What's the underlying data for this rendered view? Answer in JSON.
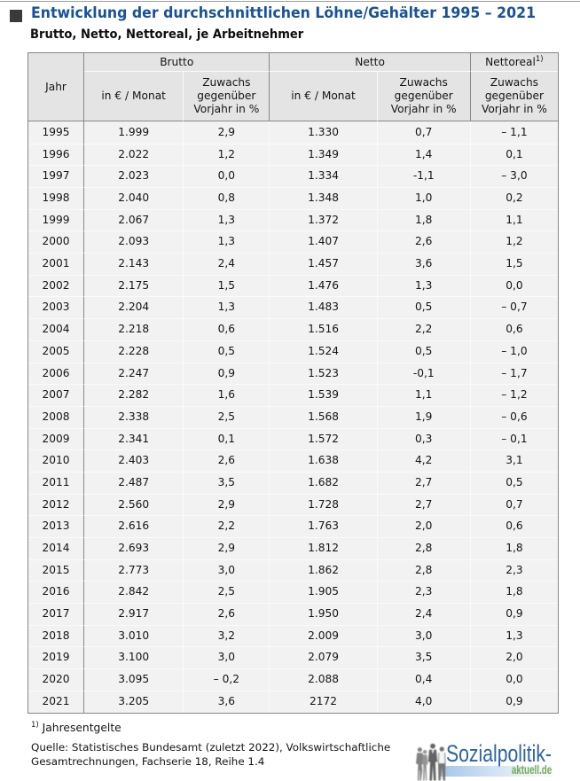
{
  "header": {
    "title": "Entwicklung der durchschnittlichen Löhne/Gehälter 1995 – 2021",
    "subtitle": "Brutto, Netto, Nettoreal, je Arbeitnehmer"
  },
  "table": {
    "jahr_label": "Jahr",
    "groups": [
      {
        "label": "Brutto",
        "sup": "",
        "cols": [
          "in € / Monat",
          "Zuwachs gegenüber Vorjahr in %"
        ]
      },
      {
        "label": "Netto",
        "sup": "",
        "cols": [
          "in € / Monat",
          "Zuwachs gegenüber Vorjahr in %"
        ]
      },
      {
        "label": "Nettoreal",
        "sup": "1)",
        "cols": [
          "Zuwachs gegenüber Vorjahr in %"
        ]
      }
    ],
    "rows": [
      [
        "1995",
        "1.999",
        "2,9",
        "1.330",
        "0,7",
        "– 1,1"
      ],
      [
        "1996",
        "2.022",
        "1,2",
        "1.349",
        "1,4",
        "0,1"
      ],
      [
        "1997",
        "2.023",
        "0,0",
        "1.334",
        "-1,1",
        "– 3,0"
      ],
      [
        "1998",
        "2.040",
        "0,8",
        "1.348",
        "1,0",
        "0,2"
      ],
      [
        "1999",
        "2.067",
        "1,3",
        "1.372",
        "1,8",
        "1,1"
      ],
      [
        "2000",
        "2.093",
        "1,3",
        "1.407",
        "2,6",
        "1,2"
      ],
      [
        "2001",
        "2.143",
        "2,4",
        "1.457",
        "3,6",
        "1,5"
      ],
      [
        "2002",
        "2.175",
        "1,5",
        "1.476",
        "1,3",
        "0,0"
      ],
      [
        "2003",
        "2.204",
        "1,3",
        "1.483",
        "0,5",
        "– 0,7"
      ],
      [
        "2004",
        "2.218",
        "0,6",
        "1.516",
        "2,2",
        "0,6"
      ],
      [
        "2005",
        "2.228",
        "0,5",
        "1.524",
        "0,5",
        "– 1,0"
      ],
      [
        "2006",
        "2.247",
        "0,9",
        "1.523",
        "-0,1",
        "– 1,7"
      ],
      [
        "2007",
        "2.282",
        "1,6",
        "1.539",
        "1,1",
        "– 1,2"
      ],
      [
        "2008",
        "2.338",
        "2,5",
        "1.568",
        "1,9",
        "– 0,6"
      ],
      [
        "2009",
        "2.341",
        "0,1",
        "1.572",
        "0,3",
        "– 0,1"
      ],
      [
        "2010",
        "2.403",
        "2,6",
        "1.638",
        "4,2",
        "3,1"
      ],
      [
        "2011",
        "2.487",
        "3,5",
        "1.682",
        "2,7",
        "0,5"
      ],
      [
        "2012",
        "2.560",
        "2,9",
        "1.728",
        "2,7",
        "0,7"
      ],
      [
        "2013",
        "2.616",
        "2,2",
        "1.763",
        "2,0",
        "0,6"
      ],
      [
        "2014",
        "2.693",
        "2,9",
        "1.812",
        "2,8",
        "1,8"
      ],
      [
        "2015",
        "2.773",
        "3,0",
        "1.862",
        "2,8",
        "2,3"
      ],
      [
        "2016",
        "2.842",
        "2,5",
        "1.905",
        "2,3",
        "1,8"
      ],
      [
        "2017",
        "2.917",
        "2,6",
        "1.950",
        "2,4",
        "0,9"
      ],
      [
        "2018",
        "3.010",
        "3,2",
        "2.009",
        "3,0",
        "1,3"
      ],
      [
        "2019",
        "3.100",
        "3,0",
        "2.079",
        "3,5",
        "2,0"
      ],
      [
        "2020",
        "3.095",
        "– 0,2",
        "2.088",
        "0,4",
        "0,0"
      ],
      [
        "2021",
        "3.205",
        "3,6",
        "2172",
        "4,0",
        "0,9"
      ]
    ]
  },
  "footnote": {
    "marker": "1)",
    "text": " Jahresentgelte"
  },
  "source": {
    "line1": "Quelle: Statistisches Bundesamt (zuletzt 2022), Volkswirtschaftliche",
    "line2": "Gesamtrechnungen, Fachserie 18, Reihe 1.4"
  },
  "logo": {
    "name": "Sozialpolitik-",
    "domain": "aktuell.de"
  },
  "colors": {
    "title_blue": "#17549d",
    "header_bg": "#e4e4e4",
    "body_bg": "#f2f2f2",
    "border_gray": "#878787",
    "logo_blue": "#2b63a4",
    "logo_green": "#74ab52"
  },
  "chart_data": {
    "type": "table",
    "title": "Entwicklung der durchschnittlichen Löhne/Gehälter 1995 – 2021",
    "subtitle": "Brutto, Netto, Nettoreal, je Arbeitnehmer",
    "columns": [
      "Jahr",
      "Brutto in € / Monat",
      "Brutto Zuwachs gegenüber Vorjahr in %",
      "Netto in € / Monat",
      "Netto Zuwachs gegenüber Vorjahr in %",
      "Nettoreal Zuwachs gegenüber Vorjahr in %"
    ],
    "rows": [
      [
        "1995",
        "1.999",
        "2,9",
        "1.330",
        "0,7",
        "– 1,1"
      ],
      [
        "1996",
        "2.022",
        "1,2",
        "1.349",
        "1,4",
        "0,1"
      ],
      [
        "1997",
        "2.023",
        "0,0",
        "1.334",
        "-1,1",
        "– 3,0"
      ],
      [
        "1998",
        "2.040",
        "0,8",
        "1.348",
        "1,0",
        "0,2"
      ],
      [
        "1999",
        "2.067",
        "1,3",
        "1.372",
        "1,8",
        "1,1"
      ],
      [
        "2000",
        "2.093",
        "1,3",
        "1.407",
        "2,6",
        "1,2"
      ],
      [
        "2001",
        "2.143",
        "2,4",
        "1.457",
        "3,6",
        "1,5"
      ],
      [
        "2002",
        "2.175",
        "1,5",
        "1.476",
        "1,3",
        "0,0"
      ],
      [
        "2003",
        "2.204",
        "1,3",
        "1.483",
        "0,5",
        "– 0,7"
      ],
      [
        "2004",
        "2.218",
        "0,6",
        "1.516",
        "2,2",
        "0,6"
      ],
      [
        "2005",
        "2.228",
        "0,5",
        "1.524",
        "0,5",
        "– 1,0"
      ],
      [
        "2006",
        "2.247",
        "0,9",
        "1.523",
        "-0,1",
        "– 1,7"
      ],
      [
        "2007",
        "2.282",
        "1,6",
        "1.539",
        "1,1",
        "– 1,2"
      ],
      [
        "2008",
        "2.338",
        "2,5",
        "1.568",
        "1,9",
        "– 0,6"
      ],
      [
        "2009",
        "2.341",
        "0,1",
        "1.572",
        "0,3",
        "– 0,1"
      ],
      [
        "2010",
        "2.403",
        "2,6",
        "1.638",
        "4,2",
        "3,1"
      ],
      [
        "2011",
        "2.487",
        "3,5",
        "1.682",
        "2,7",
        "0,5"
      ],
      [
        "2012",
        "2.560",
        "2,9",
        "1.728",
        "2,7",
        "0,7"
      ],
      [
        "2013",
        "2.616",
        "2,2",
        "1.763",
        "2,0",
        "0,6"
      ],
      [
        "2014",
        "2.693",
        "2,9",
        "1.812",
        "2,8",
        "1,8"
      ],
      [
        "2015",
        "2.773",
        "3,0",
        "1.862",
        "2,8",
        "2,3"
      ],
      [
        "2016",
        "2.842",
        "2,5",
        "1.905",
        "2,3",
        "1,8"
      ],
      [
        "2017",
        "2.917",
        "2,6",
        "1.950",
        "2,4",
        "0,9"
      ],
      [
        "2018",
        "3.010",
        "3,2",
        "2.009",
        "3,0",
        "1,3"
      ],
      [
        "2019",
        "3.100",
        "3,0",
        "2.079",
        "3,5",
        "2,0"
      ],
      [
        "2020",
        "3.095",
        "– 0,2",
        "2.088",
        "0,4",
        "0,0"
      ],
      [
        "2021",
        "3.205",
        "3,6",
        "2172",
        "4,0",
        "0,9"
      ]
    ]
  }
}
